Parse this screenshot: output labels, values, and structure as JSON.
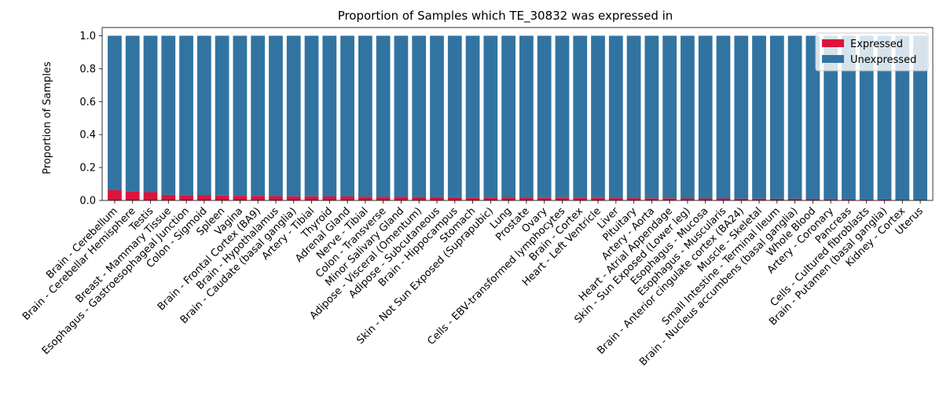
{
  "chart_data": {
    "type": "bar",
    "stacked": true,
    "title": "Proportion of Samples which TE_30832 was expressed in",
    "xlabel": "",
    "ylabel": "Proportion of Samples",
    "ylim": [
      0,
      1.05
    ],
    "yticks": [
      "0.0",
      "0.2",
      "0.4",
      "0.6",
      "0.8",
      "1.0"
    ],
    "legend_position": "top-right",
    "categories": [
      "Brain - Cerebellum",
      "Brain - Cerebellar Hemisphere",
      "Testis",
      "Breast - Mammary Tissue",
      "Esophagus - Gastroesophageal Junction",
      "Colon - Sigmoid",
      "Spleen",
      "Vagina",
      "Brain - Frontal Cortex (BA9)",
      "Brain - Hypothalamus",
      "Brain - Caudate (basal ganglia)",
      "Artery - Tibial",
      "Thyroid",
      "Adrenal Gland",
      "Nerve - Tibial",
      "Colon - Transverse",
      "Minor Salivary Gland",
      "Adipose - Visceral (Omentum)",
      "Adipose - Subcutaneous",
      "Brain - Hippocampus",
      "Stomach",
      "Skin - Not Sun Exposed (Suprapubic)",
      "Lung",
      "Prostate",
      "Ovary",
      "Cells - EBV-transformed lymphocytes",
      "Brain - Cortex",
      "Heart - Left Ventricle",
      "Liver",
      "Pituitary",
      "Artery - Aorta",
      "Heart - Atrial Appendage",
      "Skin - Sun Exposed (Lower leg)",
      "Esophagus - Mucosa",
      "Esophagus - Muscularis",
      "Brain - Anterior cingulate cortex (BA24)",
      "Muscle - Skeletal",
      "Small Intestine - Terminal Ileum",
      "Brain - Nucleus accumbens (basal ganglia)",
      "Whole Blood",
      "Artery - Coronary",
      "Pancreas",
      "Cells - Cultured fibroblasts",
      "Brain - Putamen (basal ganglia)",
      "Kidney - Cortex",
      "Uterus"
    ],
    "series": [
      {
        "name": "Expressed",
        "color": "#dc143c",
        "values": [
          0.062,
          0.056,
          0.05,
          0.034,
          0.032,
          0.031,
          0.03,
          0.028,
          0.027,
          0.026,
          0.025,
          0.025,
          0.024,
          0.024,
          0.023,
          0.022,
          0.022,
          0.021,
          0.021,
          0.02,
          0.018,
          0.018,
          0.017,
          0.017,
          0.016,
          0.016,
          0.015,
          0.015,
          0.014,
          0.014,
          0.013,
          0.013,
          0.012,
          0.012,
          0.012,
          0.011,
          0.011,
          0.01,
          0.01,
          0.009,
          0.008,
          0.008,
          0.006,
          0.005,
          0.0,
          0.0
        ]
      },
      {
        "name": "Unexpressed",
        "color": "#3274a1",
        "values": [
          0.938,
          0.944,
          0.95,
          0.966,
          0.968,
          0.969,
          0.97,
          0.972,
          0.973,
          0.974,
          0.975,
          0.975,
          0.976,
          0.976,
          0.977,
          0.978,
          0.978,
          0.979,
          0.979,
          0.98,
          0.982,
          0.982,
          0.983,
          0.983,
          0.984,
          0.984,
          0.985,
          0.985,
          0.986,
          0.986,
          0.987,
          0.987,
          0.988,
          0.988,
          0.988,
          0.989,
          0.989,
          0.99,
          0.99,
          0.991,
          0.992,
          0.992,
          0.994,
          0.995,
          1.0,
          1.0
        ]
      }
    ]
  }
}
